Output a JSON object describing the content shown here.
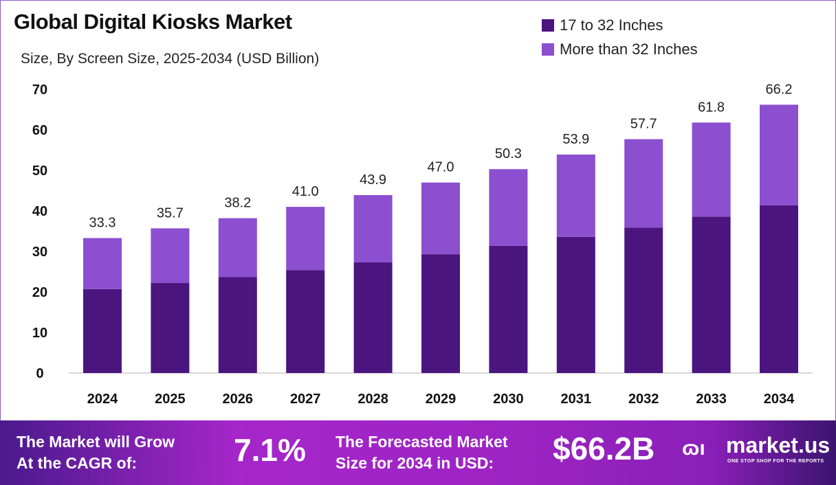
{
  "chart_data": {
    "type": "bar",
    "stacked": true,
    "title": "Global Digital Kiosks Market",
    "subtitle": "Size, By Screen Size, 2025-2034 (USD Billion)",
    "categories": [
      "2024",
      "2025",
      "2026",
      "2027",
      "2028",
      "2029",
      "2030",
      "2031",
      "2032",
      "2033",
      "2034"
    ],
    "series": [
      {
        "name": "17 to 32 Inches",
        "color": "#4b1580",
        "values": [
          20.7,
          22.2,
          23.7,
          25.4,
          27.3,
          29.3,
          31.4,
          33.6,
          35.9,
          38.6,
          41.4
        ]
      },
      {
        "name": "More than 32 Inches",
        "color": "#8b4fcf",
        "values": [
          12.6,
          13.5,
          14.5,
          15.6,
          16.6,
          17.7,
          18.9,
          20.3,
          21.8,
          23.2,
          24.8
        ]
      }
    ],
    "totals": [
      "33.3",
      "35.7",
      "38.2",
      "41.0",
      "43.9",
      "47.0",
      "50.3",
      "53.9",
      "57.7",
      "61.8",
      "66.2"
    ],
    "yticks": [
      0,
      10,
      20,
      30,
      40,
      50,
      60,
      70
    ],
    "ylim": [
      0,
      70
    ],
    "grid": false,
    "legend_position": "top-right"
  },
  "footer": {
    "cagr_label_1": "The Market will Grow",
    "cagr_label_2": "At the CAGR of:",
    "cagr_value": "7.1%",
    "forecast_label_1": "The Forecasted Market",
    "forecast_label_2": "Size for 2034 in USD:",
    "forecast_value": "$66.2B",
    "logo_text": "market.us",
    "logo_tagline": "ONE STOP SHOP FOR THE REPORTS"
  }
}
